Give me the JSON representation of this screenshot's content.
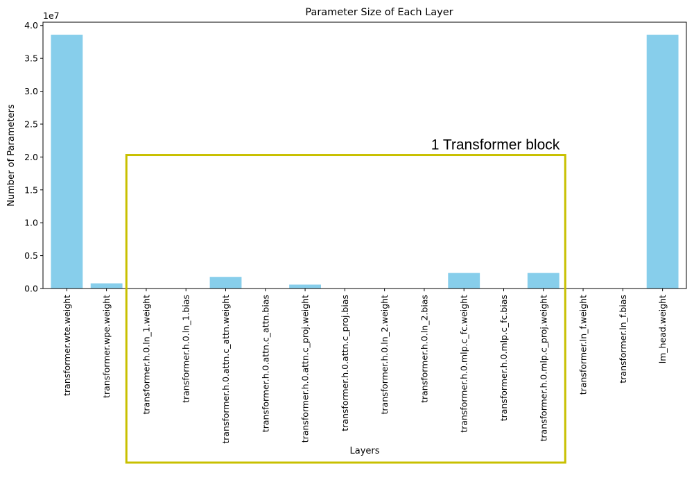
{
  "chart_data": {
    "type": "bar",
    "title": "Parameter Size of Each Layer",
    "xlabel": "Layers",
    "ylabel": "Number of Parameters",
    "scale_note": "1e7",
    "categories": [
      "transformer.wte.weight",
      "transformer.wpe.weight",
      "transformer.h.0.ln_1.weight",
      "transformer.h.0.ln_1.bias",
      "transformer.h.0.attn.c_attn.weight",
      "transformer.h.0.attn.c_attn.bias",
      "transformer.h.0.attn.c_proj.weight",
      "transformer.h.0.attn.c_proj.bias",
      "transformer.h.0.ln_2.weight",
      "transformer.h.0.ln_2.bias",
      "transformer.h.0.mlp.c_fc.weight",
      "transformer.h.0.mlp.c_fc.bias",
      "transformer.h.0.mlp.c_proj.weight",
      "transformer.ln_f.weight",
      "transformer.ln_f.bias",
      "lm_head.weight"
    ],
    "values": [
      38597376,
      786432,
      768,
      768,
      1769472,
      2304,
      589824,
      768,
      768,
      768,
      2359296,
      3072,
      2359296,
      768,
      768,
      38597376
    ],
    "ylim": [
      0,
      40500000
    ],
    "yticks": [
      0,
      5000000,
      10000000,
      15000000,
      20000000,
      25000000,
      30000000,
      35000000,
      40000000
    ],
    "ytick_labels": [
      "0.0",
      "0.5",
      "1.0",
      "1.5",
      "2.0",
      "2.5",
      "3.0",
      "3.5",
      "4.0"
    ],
    "bar_color": "#87ceeb",
    "grid": false,
    "annotation": {
      "text": "1 Transformer block",
      "color": "#c8c000"
    }
  }
}
